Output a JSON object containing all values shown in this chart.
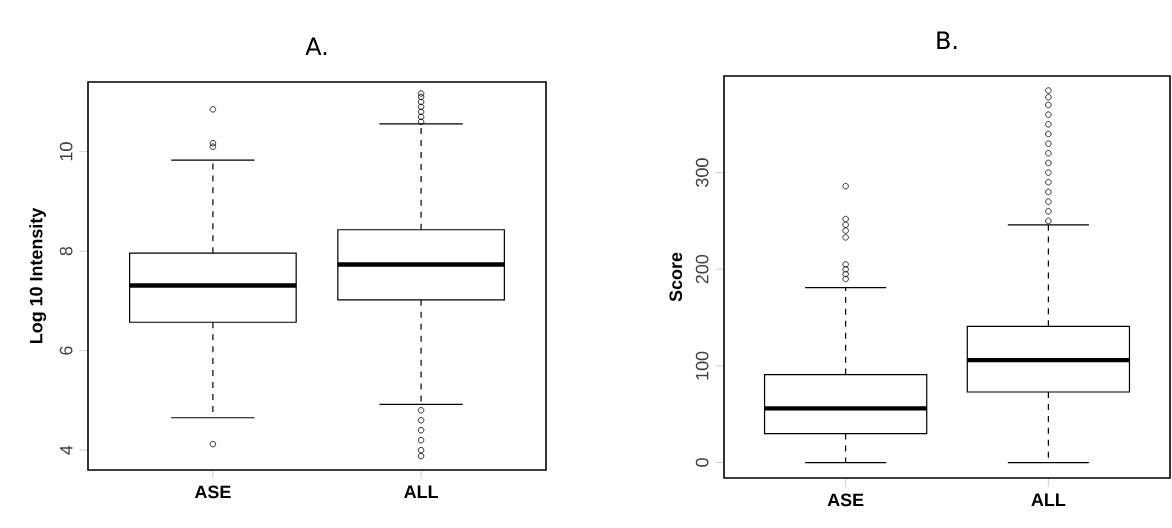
{
  "chart_data": [
    {
      "type": "box",
      "title": "A.",
      "ylabel": "Log 10 Intensity",
      "categories": [
        "ASE",
        "ALL"
      ],
      "color": "#000000",
      "grid": false,
      "boxes": [
        {
          "low": 4.65,
          "q1": 6.57,
          "median": 7.31,
          "q3": 7.96,
          "high": 9.83,
          "outliers": [
            10.85,
            10.17,
            10.1,
            4.12
          ]
        },
        {
          "low": 4.92,
          "q1": 7.02,
          "median": 7.73,
          "q3": 8.43,
          "high": 10.56,
          "outliers": [
            10.6,
            10.7,
            10.8,
            10.9,
            11.0,
            11.1,
            11.17,
            4.8,
            4.6,
            4.4,
            4.2,
            4.0,
            3.88
          ]
        }
      ],
      "ylim": [
        3.6,
        11.4
      ],
      "yticks": [
        4,
        6,
        8,
        10
      ]
    },
    {
      "type": "box",
      "title": "B.",
      "ylabel": "Score",
      "categories": [
        "ASE",
        "ALL"
      ],
      "color": "#000000",
      "grid": false,
      "boxes": [
        {
          "low": 0,
          "q1": 30,
          "median": 56,
          "q3": 91,
          "high": 181,
          "outliers": [
            286,
            252,
            246,
            240,
            233,
            205,
            200,
            195,
            190
          ]
        },
        {
          "low": 0,
          "q1": 73,
          "median": 106,
          "q3": 141,
          "high": 246,
          "outliers": [
            250,
            260,
            270,
            280,
            290,
            300,
            310,
            320,
            330,
            340,
            350,
            360,
            370,
            378,
            385
          ]
        }
      ],
      "ylim": [
        -16,
        400
      ],
      "yticks": [
        0,
        100,
        200,
        300
      ]
    }
  ]
}
